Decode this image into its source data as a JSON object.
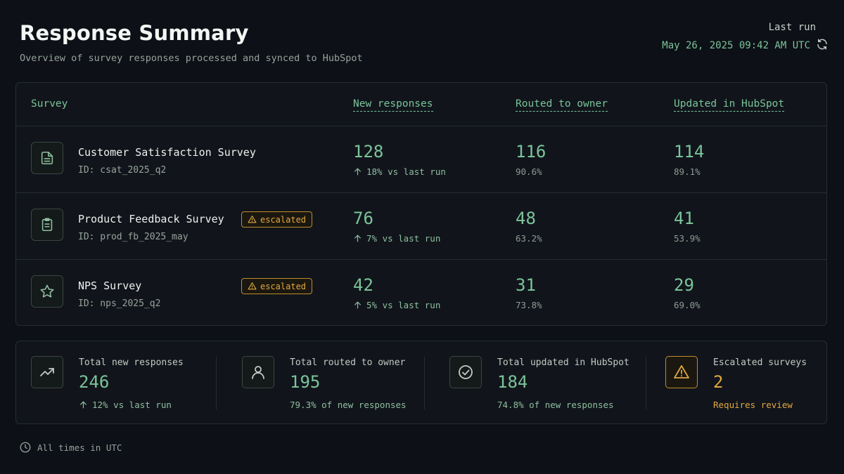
{
  "header": {
    "title": "Response Summary",
    "subtitle": "Overview of survey responses processed and synced to HubSpot",
    "last_run_label": "Last run",
    "last_run_time": "May 26, 2025 09:42 AM UTC",
    "refresh_icon": "refresh-icon"
  },
  "table": {
    "columns": [
      "Survey",
      "New responses",
      "Routed to owner",
      "Updated in HubSpot"
    ],
    "rows": [
      {
        "icon": "document-icon",
        "name": "Customer Satisfaction Survey",
        "id": "ID: csat_2025_q2",
        "badge": "",
        "new_responses": "128",
        "new_delta": "18% vs last run",
        "routed": "116",
        "routed_pct": "90.6%",
        "updated": "114",
        "updated_pct": "89.1%"
      },
      {
        "icon": "clipboard-icon",
        "name": "Product Feedback Survey",
        "id": "ID: prod_fb_2025_may",
        "badge": "escalated",
        "new_responses": "76",
        "new_delta": "7% vs last run",
        "routed": "48",
        "routed_pct": "63.2%",
        "updated": "41",
        "updated_pct": "53.9%"
      },
      {
        "icon": "star-icon",
        "name": "NPS Survey",
        "id": "ID: nps_2025_q2",
        "badge": "escalated",
        "new_responses": "42",
        "new_delta": "5% vs last run",
        "routed": "31",
        "routed_pct": "73.8%",
        "updated": "29",
        "updated_pct": "69.0%"
      }
    ]
  },
  "summary": [
    {
      "icon": "trend-up-icon",
      "label": "Total new responses",
      "value": "246",
      "sub": "12% vs last run"
    },
    {
      "icon": "user-icon",
      "label": "Total routed to owner",
      "value": "195",
      "sub": "79.3% of new responses"
    },
    {
      "icon": "check-circle-icon",
      "label": "Total updated in HubSpot",
      "value": "184",
      "sub": "74.8% of new responses"
    },
    {
      "icon": "warning-icon",
      "label": "Escalated surveys",
      "value": "2",
      "sub": "Requires review"
    }
  ],
  "footer": {
    "text": "All times in UTC",
    "icon": "clock-icon"
  },
  "colors": {
    "accent": "#7bc49a",
    "warning": "#e2a73f",
    "background": "#0d1016"
  }
}
